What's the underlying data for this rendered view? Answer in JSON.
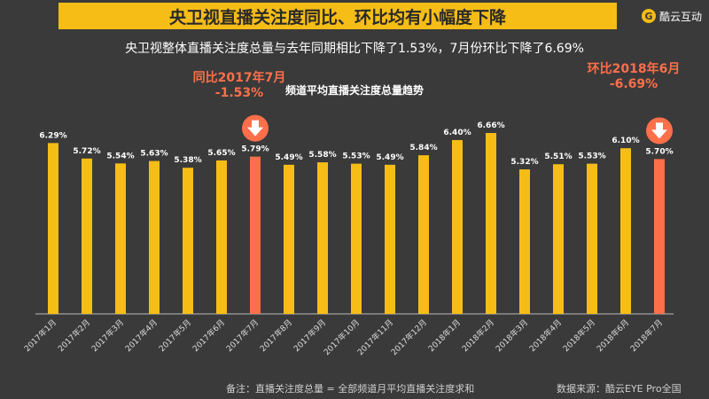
{
  "header": {
    "title": "央卫视直播关注度同比、环比均有小幅度下降",
    "brand_name": "酷云互动",
    "brand_icon": "brand-logo-icon"
  },
  "subtitle": "央卫视整体直播关注度总量与去年同期相比下降了1.53%，7月份环比下降了6.69%",
  "callouts": {
    "yoy_label": "同比2017年7月",
    "yoy_value": "-1.53%",
    "mom_label": "环比2018年6月",
    "mom_value": "-6.69%"
  },
  "footer": {
    "note": "备注：直播关注度总量 = 全部频道月平均直播关注度求和",
    "source": "数据来源：酷云EYE Pro全国"
  },
  "colors": {
    "bar_default": "#f6bd16",
    "bar_highlight": "#ff6f4a",
    "background": "#3a3a3a",
    "axis": "#bbbbbb"
  },
  "chart_data": {
    "type": "bar",
    "title": "频道平均直播关注度总量趋势",
    "categories": [
      "2017年1月",
      "2017年2月",
      "2017年3月",
      "2017年4月",
      "2017年5月",
      "2017年6月",
      "2017年7月",
      "2017年8月",
      "2017年9月",
      "2017年10月",
      "2017年11月",
      "2017年12月",
      "2018年1月",
      "2018年2月",
      "2018年3月",
      "2018年4月",
      "2018年5月",
      "2018年6月",
      "2018年7月"
    ],
    "values": [
      6.29,
      5.72,
      5.54,
      5.63,
      5.38,
      5.65,
      5.79,
      5.49,
      5.58,
      5.53,
      5.49,
      5.84,
      6.4,
      6.66,
      5.32,
      5.51,
      5.53,
      6.1,
      5.7
    ],
    "value_labels": [
      "6.29%",
      "5.72%",
      "5.54%",
      "5.63%",
      "5.38%",
      "5.65%",
      "5.79%",
      "5.49%",
      "5.58%",
      "5.53%",
      "5.49%",
      "5.84%",
      "6.40%",
      "6.66%",
      "5.32%",
      "5.51%",
      "5.53%",
      "6.10%",
      "5.70%"
    ],
    "highlight_indices": [
      6,
      18
    ],
    "xlabel": "",
    "ylabel": "",
    "ylim": [
      0,
      6.66
    ],
    "grid": false,
    "legend": "none"
  }
}
